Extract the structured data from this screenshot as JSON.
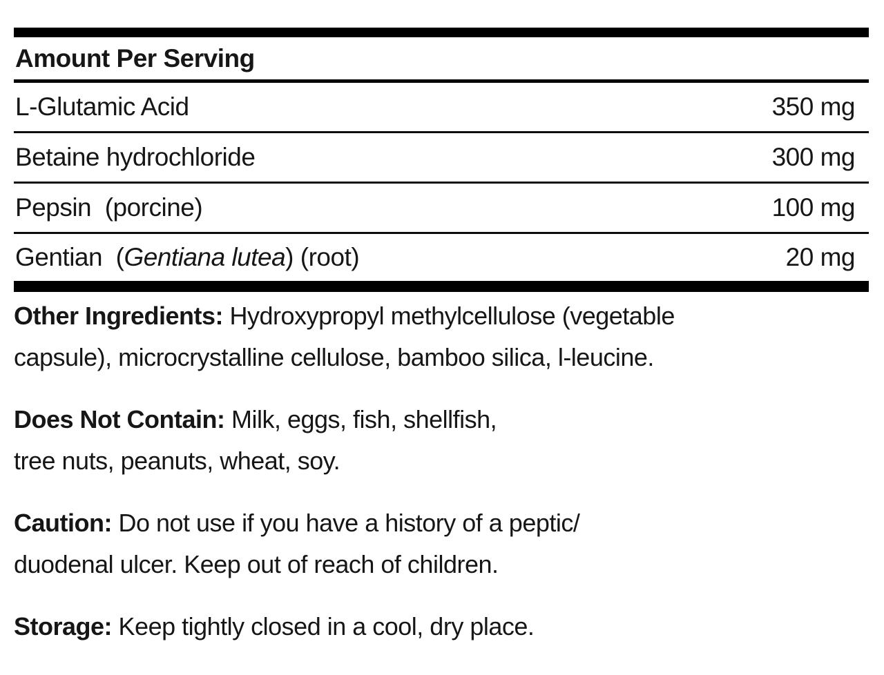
{
  "panel": {
    "header": "Amount Per Serving",
    "rows": [
      {
        "prefix": "L-Glutamic Acid",
        "italic": "",
        "suffix": "",
        "amount": "350 mg"
      },
      {
        "prefix": "Betaine hydrochloride",
        "italic": "",
        "suffix": "",
        "amount": "300 mg"
      },
      {
        "prefix": "Pepsin  (porcine)",
        "italic": "",
        "suffix": "",
        "amount": "100 mg"
      },
      {
        "prefix": "Gentian  (",
        "italic": "Gentiana lutea",
        "suffix": ") (root)",
        "amount": "20 mg"
      }
    ],
    "sections": [
      {
        "label": "Other Ingredients:",
        "line1": " Hydroxypropyl methylcellulose (vegetable",
        "line2": "capsule), microcrystalline cellulose, bamboo silica, l-leucine."
      },
      {
        "label": "Does Not Contain:",
        "line1": " Milk, eggs, fish, shellfish,",
        "line2": "tree nuts, peanuts, wheat, soy."
      },
      {
        "label": "Caution:",
        "line1": " Do not use if you have a history of a peptic/",
        "line2": "duodenal ulcer. Keep out of reach of children."
      },
      {
        "label": "Storage:",
        "line1": " Keep tightly closed in a cool, dry place."
      }
    ],
    "colors": {
      "text": "#161616",
      "rule": "#000000"
    }
  }
}
